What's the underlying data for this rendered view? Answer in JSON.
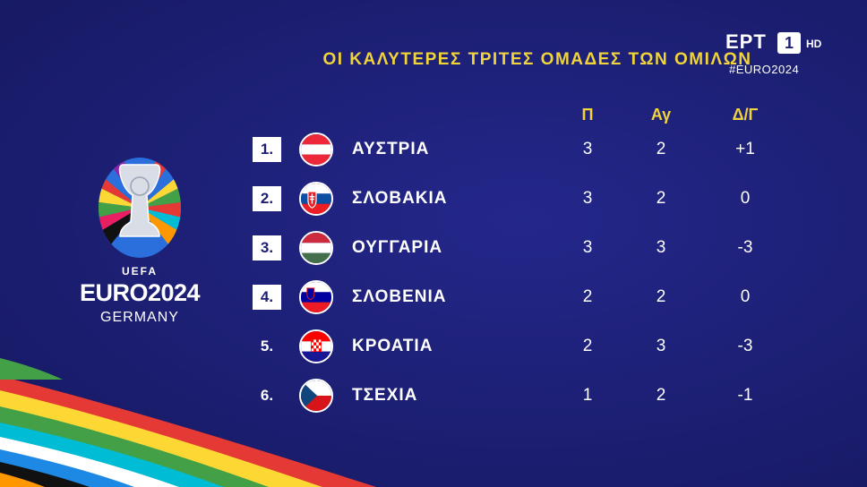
{
  "broadcaster": {
    "name": "ΕΡΤ",
    "channel": "1",
    "quality": "HD",
    "hashtag": "#EURO2024"
  },
  "title": "ΟΙ ΚΑΛΥΤΕΡΕΣ ΤΡΙΤΕΣ ΟΜΑΔΕΣ ΤΩΝ ΟΜΙΛΩΝ",
  "columns": {
    "points": "Π",
    "matches": "Αγ",
    "goal_diff": "Δ/Γ"
  },
  "logo": {
    "uefa": "UEFA",
    "euro": "EURO2024",
    "country": "GERMANY"
  },
  "colors": {
    "background": "#1c1f73",
    "accent": "#f0d43a",
    "text": "#ffffff"
  },
  "rows": [
    {
      "rank": "1.",
      "team": "ΑΥΣΤΡΙΑ",
      "flag": "austria-flag",
      "points": "3",
      "matches": "2",
      "goal_diff": "+1",
      "boxed": true
    },
    {
      "rank": "2.",
      "team": "ΣΛΟΒΑΚΙΑ",
      "flag": "slovakia-flag",
      "points": "3",
      "matches": "2",
      "goal_diff": "0",
      "boxed": true
    },
    {
      "rank": "3.",
      "team": "ΟΥΓΓΑΡΙΑ",
      "flag": "hungary-flag",
      "points": "3",
      "matches": "3",
      "goal_diff": "-3",
      "boxed": true
    },
    {
      "rank": "4.",
      "team": "ΣΛΟΒΕΝΙΑ",
      "flag": "slovenia-flag",
      "points": "2",
      "matches": "2",
      "goal_diff": "0",
      "boxed": true
    },
    {
      "rank": "5.",
      "team": "ΚΡΟΑΤΙΑ",
      "flag": "croatia-flag",
      "points": "2",
      "matches": "3",
      "goal_diff": "-3",
      "boxed": false
    },
    {
      "rank": "6.",
      "team": "ΤΣΕΧΙΑ",
      "flag": "czechia-flag",
      "points": "1",
      "matches": "2",
      "goal_diff": "-1",
      "boxed": false
    }
  ]
}
